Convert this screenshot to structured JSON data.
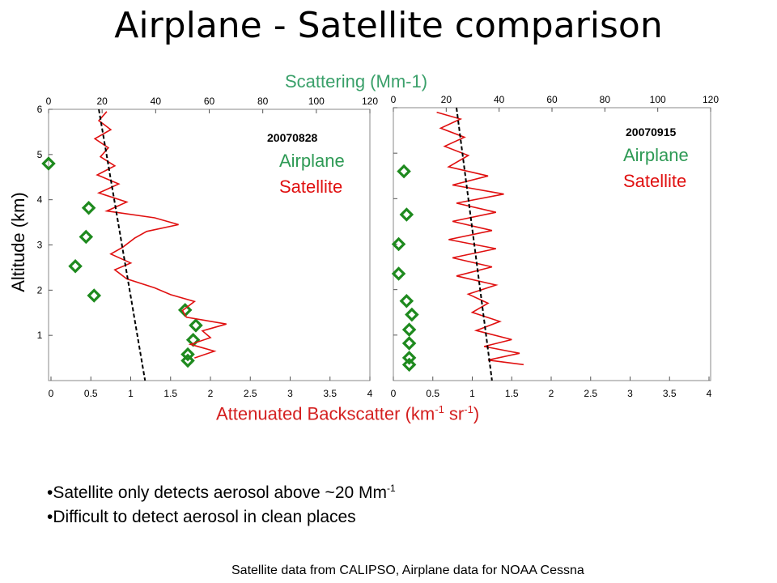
{
  "slide": {
    "title": "Airplane - Satellite comparison",
    "top_axis_label": "Scattering (Mm-1)",
    "left_axis_label": "Altitude (km)",
    "bottom_axis_label": {
      "prefix": "Attenuated Backscatter (km",
      "sup1": "-1",
      "mid": " sr",
      "sup2": "-1",
      "suffix": ")"
    },
    "bullets": [
      {
        "text": "•Satellite only detects aerosol above  ~20 Mm",
        "sup": "-1"
      },
      {
        "text": "•Difficult to detect aerosol in clean places",
        "sup": ""
      }
    ],
    "footnote": "Satellite data from CALIPSO, Airplane data for NOAA Cessna"
  },
  "colors": {
    "airplane": "#1e8a1e",
    "satellite": "#e01010",
    "fit": "#000000"
  },
  "chart_data": [
    {
      "type": "line",
      "panel": "left",
      "date_label": "20070828",
      "legend": [
        "Airplane",
        "Satellite"
      ],
      "top_axis": {
        "label": "Scattering (Mm-1)",
        "range": [
          0,
          120
        ],
        "ticks": [
          0,
          20,
          40,
          60,
          80,
          100,
          120
        ]
      },
      "bottom_axis": {
        "label": "Attenuated Backscatter (km-1 sr-1)",
        "range": [
          0,
          4
        ],
        "ticks": [
          "0",
          "0.5",
          "1",
          "1.5",
          "2",
          "2.5",
          "3",
          "3.5",
          "4"
        ]
      },
      "y_axis": {
        "label": "Altitude (km)",
        "range": [
          0,
          6
        ],
        "ticks": [
          1,
          2,
          3,
          4,
          5,
          6
        ]
      },
      "series": [
        {
          "name": "Airplane",
          "x_axis": "top",
          "marker": "diamond",
          "points": [
            [
              0,
              4.8
            ],
            [
              15,
              3.82
            ],
            [
              14,
              3.18
            ],
            [
              10,
              2.53
            ],
            [
              17,
              1.88
            ],
            [
              51,
              1.56
            ],
            [
              55,
              1.22
            ],
            [
              54,
              0.9
            ],
            [
              52,
              0.58
            ],
            [
              52,
              0.44
            ]
          ]
        },
        {
          "name": "Satellite",
          "x_axis": "bottom",
          "marker": "line",
          "points": [
            [
              0.7,
              5.95
            ],
            [
              0.6,
              5.75
            ],
            [
              0.75,
              5.55
            ],
            [
              0.55,
              5.35
            ],
            [
              0.72,
              5.15
            ],
            [
              0.62,
              4.95
            ],
            [
              0.8,
              4.75
            ],
            [
              0.58,
              4.55
            ],
            [
              0.85,
              4.35
            ],
            [
              0.6,
              4.15
            ],
            [
              0.95,
              3.95
            ],
            [
              0.7,
              3.75
            ],
            [
              1.3,
              3.6
            ],
            [
              1.6,
              3.45
            ],
            [
              1.2,
              3.3
            ],
            [
              1.05,
              3.15
            ],
            [
              0.9,
              2.95
            ],
            [
              0.75,
              2.8
            ],
            [
              1.0,
              2.6
            ],
            [
              0.8,
              2.45
            ],
            [
              0.95,
              2.25
            ],
            [
              1.3,
              2.05
            ],
            [
              1.5,
              1.9
            ],
            [
              1.8,
              1.75
            ],
            [
              1.65,
              1.55
            ],
            [
              1.7,
              1.4
            ],
            [
              2.2,
              1.25
            ],
            [
              1.9,
              1.1
            ],
            [
              2.0,
              0.95
            ],
            [
              1.75,
              0.8
            ],
            [
              2.05,
              0.65
            ],
            [
              1.8,
              0.5
            ]
          ]
        },
        {
          "name": "fit",
          "x_axis": "bottom",
          "marker": "dashed",
          "points": [
            [
              0.6,
              6.0
            ],
            [
              1.18,
              0.0
            ]
          ]
        }
      ]
    },
    {
      "type": "line",
      "panel": "right",
      "date_label": "20070915",
      "legend": [
        "Airplane",
        "Satellite"
      ],
      "top_axis": {
        "label": "Scattering (Mm-1)",
        "range": [
          0,
          120
        ],
        "ticks": [
          0,
          20,
          40,
          60,
          80,
          100,
          120
        ]
      },
      "bottom_axis": {
        "label": "Attenuated Backscatter (km-1 sr-1)",
        "range": [
          0,
          4
        ],
        "ticks": [
          "0",
          "0.5",
          "1",
          "1.5",
          "2",
          "2.5",
          "3",
          "3.5",
          "4"
        ]
      },
      "y_axis": {
        "label": "Altitude (km)",
        "range": [
          0,
          6
        ],
        "ticks": [
          1,
          2,
          3,
          4,
          5,
          6
        ]
      },
      "series": [
        {
          "name": "Airplane",
          "x_axis": "top",
          "marker": "diamond",
          "points": [
            [
              4,
              4.6
            ],
            [
              5,
              3.65
            ],
            [
              2,
              3.0
            ],
            [
              2,
              2.35
            ],
            [
              5,
              1.75
            ],
            [
              7,
              1.45
            ],
            [
              6,
              1.12
            ],
            [
              6,
              0.82
            ],
            [
              6,
              0.5
            ],
            [
              6,
              0.35
            ]
          ]
        },
        {
          "name": "Satellite",
          "x_axis": "bottom",
          "marker": "line",
          "points": [
            [
              0.55,
              5.9
            ],
            [
              0.85,
              5.75
            ],
            [
              0.6,
              5.55
            ],
            [
              0.9,
              5.35
            ],
            [
              0.65,
              5.15
            ],
            [
              0.95,
              4.95
            ],
            [
              0.7,
              4.7
            ],
            [
              1.2,
              4.5
            ],
            [
              0.75,
              4.3
            ],
            [
              1.4,
              4.1
            ],
            [
              0.8,
              3.9
            ],
            [
              1.3,
              3.7
            ],
            [
              0.75,
              3.5
            ],
            [
              1.25,
              3.3
            ],
            [
              0.7,
              3.1
            ],
            [
              1.3,
              2.9
            ],
            [
              0.75,
              2.7
            ],
            [
              1.25,
              2.5
            ],
            [
              0.8,
              2.3
            ],
            [
              1.3,
              2.1
            ],
            [
              0.95,
              1.9
            ],
            [
              1.2,
              1.7
            ],
            [
              1.0,
              1.5
            ],
            [
              1.35,
              1.3
            ],
            [
              1.05,
              1.1
            ],
            [
              1.5,
              0.9
            ],
            [
              1.15,
              0.75
            ],
            [
              1.6,
              0.6
            ],
            [
              1.2,
              0.45
            ],
            [
              1.65,
              0.35
            ]
          ]
        },
        {
          "name": "fit",
          "x_axis": "bottom",
          "marker": "dashed",
          "points": [
            [
              0.8,
              6.0
            ],
            [
              1.25,
              0.0
            ]
          ]
        }
      ]
    }
  ]
}
